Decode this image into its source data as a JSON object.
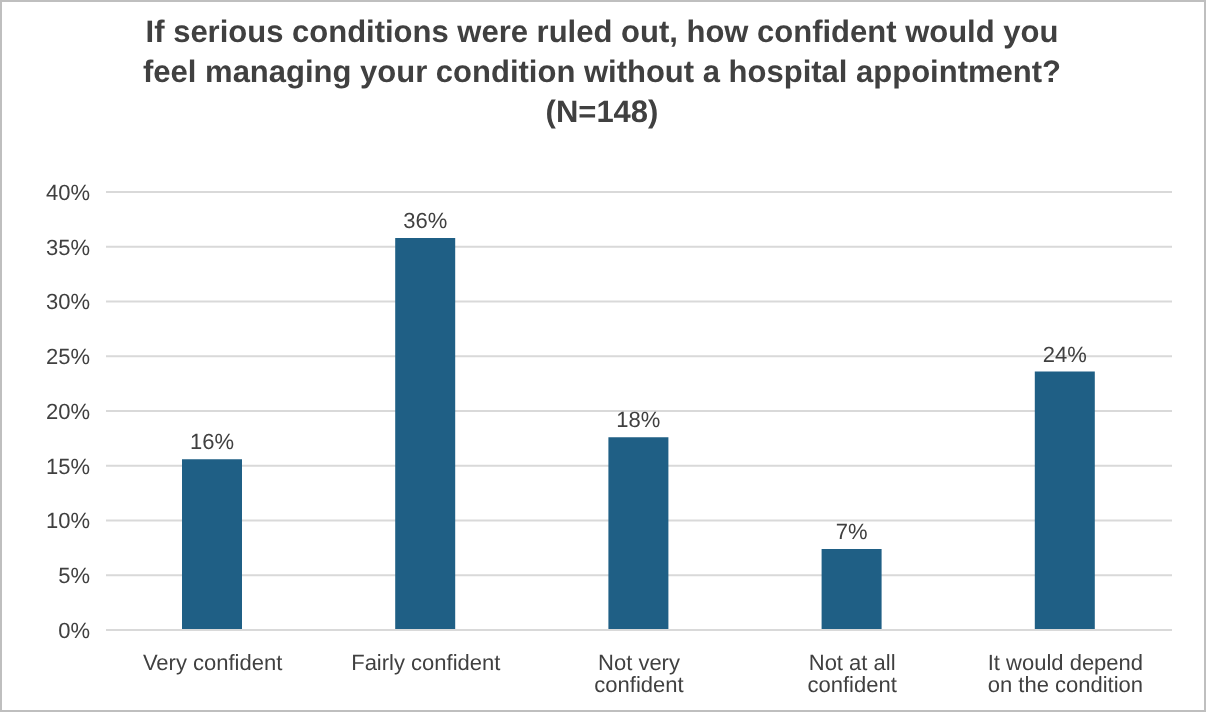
{
  "chart_data": {
    "type": "bar",
    "title": "If serious conditions were ruled out, how confident would you feel managing your condition without a hospital appointment? (N=148)",
    "categories": [
      "Very confident",
      "Fairly confident",
      "Not very confident",
      "Not at all confident",
      "It would depend on the condition"
    ],
    "values": [
      15.6,
      35.8,
      17.6,
      7.4,
      23.6
    ],
    "value_labels": [
      "16%",
      "36%",
      "18%",
      "7%",
      "24%"
    ],
    "color": "#1f5f85",
    "ylim": [
      0,
      40
    ],
    "yticks": [
      {
        "value": 0,
        "label": "0%"
      },
      {
        "value": 5,
        "label": "5%"
      },
      {
        "value": 10,
        "label": "10%"
      },
      {
        "value": 15,
        "label": "15%"
      },
      {
        "value": 20,
        "label": "20%"
      },
      {
        "value": 25,
        "label": "25%"
      },
      {
        "value": 30,
        "label": "30%"
      },
      {
        "value": 35,
        "label": "35%"
      },
      {
        "value": 40,
        "label": "40%"
      }
    ],
    "grid": "y",
    "legend": false
  }
}
